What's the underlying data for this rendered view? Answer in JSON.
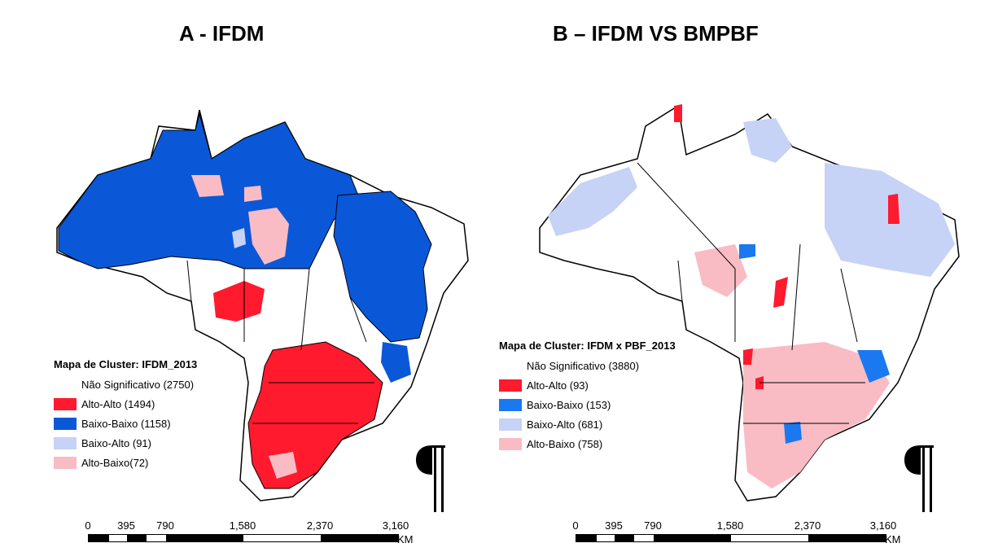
{
  "panel_a": {
    "title": "A -  IFDM",
    "legend_title": "Mapa de Cluster: IFDM_2013",
    "legend": [
      {
        "label": "Não Significativo (2750)",
        "color": ""
      },
      {
        "label": "Alto-Alto (1494)",
        "color": "#ff1a2e"
      },
      {
        "label": "Baixo-Baixo (1158)",
        "color": "#0a58d8"
      },
      {
        "label": "Baixo-Alto (91)",
        "color": "#c6d3f6"
      },
      {
        "label": "Alto-Baixo(72)",
        "color": "#f9bcc4"
      }
    ]
  },
  "panel_b": {
    "title": "B – IFDM VS BMPBF",
    "legend_title": "Mapa de Cluster: IFDM x PBF_2013",
    "legend": [
      {
        "label": "Não Significativo (3880)",
        "color": ""
      },
      {
        "label": "Alto-Alto (93)",
        "color": "#ff1a2e"
      },
      {
        "label": "Baixo-Baixo (153)",
        "color": "#1a78f0"
      },
      {
        "label": "Baixo-Alto (681)",
        "color": "#c6d3f6"
      },
      {
        "label": "Alto-Baixo (758)",
        "color": "#f9bcc4"
      }
    ]
  },
  "scale": {
    "ticks": [
      "0",
      "395",
      "790",
      "1,580",
      "2,370",
      "3,160"
    ],
    "unit": "KM"
  }
}
